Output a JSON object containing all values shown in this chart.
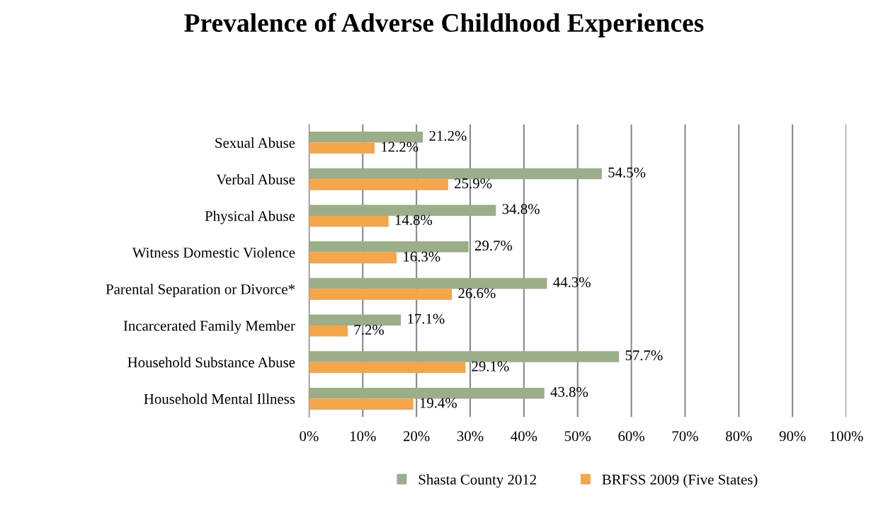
{
  "chart_data": {
    "type": "bar",
    "orientation": "horizontal",
    "title": "Prevalence of Adverse Childhood Experiences",
    "categories": [
      "Sexual Abuse",
      "Verbal Abuse",
      "Physical Abuse",
      "Witness Domestic Violence",
      "Parental Separation or Divorce*",
      "Incarcerated Family Member",
      "Household Substance Abuse",
      "Household Mental Illness"
    ],
    "series": [
      {
        "name": "Shasta County 2012",
        "color": "#9bae8a",
        "values": [
          21.2,
          54.5,
          34.8,
          29.7,
          44.3,
          17.1,
          57.7,
          43.8
        ],
        "value_labels": [
          "21.2%",
          "54.5%",
          "34.8%",
          "29.7%",
          "44.3%",
          "17.1%",
          "57.7%",
          "43.8%"
        ]
      },
      {
        "name": "BRFSS 2009 (Five States)",
        "color": "#f5a54a",
        "values": [
          12.2,
          25.9,
          14.8,
          16.3,
          26.6,
          7.2,
          29.1,
          19.4
        ],
        "value_labels": [
          "12.2%",
          "25.9%",
          "14.8%",
          "16.3%",
          "26.6%",
          "7.2%",
          "29.1%",
          "19.4%"
        ]
      }
    ],
    "xlim": [
      0,
      100
    ],
    "xticks": [
      {
        "value": 0,
        "label": "0%"
      },
      {
        "value": 10,
        "label": "10%"
      },
      {
        "value": 20,
        "label": "20%"
      },
      {
        "value": 30,
        "label": "30%"
      },
      {
        "value": 40,
        "label": "40%"
      },
      {
        "value": 50,
        "label": "50%"
      },
      {
        "value": 60,
        "label": "60%"
      },
      {
        "value": 70,
        "label": "70%"
      },
      {
        "value": 80,
        "label": "80%"
      },
      {
        "value": 90,
        "label": "90%"
      },
      {
        "value": 100,
        "label": "100%"
      }
    ],
    "grid": "x",
    "legend": "bottom"
  }
}
